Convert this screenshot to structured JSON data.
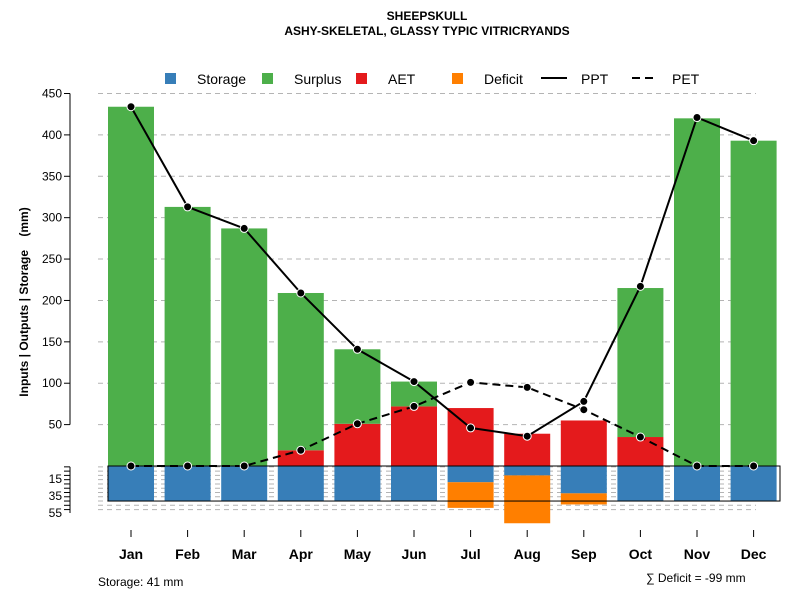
{
  "chart_data": {
    "type": "bar",
    "title": "SHEEPSKULL",
    "subtitle": "ASHY-SKELETAL, GLASSY TYPIC VITRICRYANDS",
    "ylabel": "Inputs | Outputs | Storage    (mm)",
    "ylim": [
      0,
      450
    ],
    "ylim_storage": [
      0,
      55
    ],
    "yticks": [
      50,
      100,
      150,
      200,
      250,
      300,
      350,
      400,
      450
    ],
    "yticks_storage": [
      15,
      35,
      55
    ],
    "grid": true,
    "legend_position": "top",
    "categories": [
      "Jan",
      "Feb",
      "Mar",
      "Apr",
      "May",
      "Jun",
      "Jul",
      "Aug",
      "Sep",
      "Oct",
      "Nov",
      "Dec"
    ],
    "series": [
      {
        "name": "Storage",
        "kind": "bar",
        "color": "#377EB8",
        "values": [
          41,
          41,
          41,
          41,
          41,
          41,
          19,
          11,
          32,
          41,
          41,
          41
        ]
      },
      {
        "name": "Surplus",
        "kind": "bar",
        "color": "#4DAF4A",
        "values": [
          434,
          313,
          287,
          190,
          90,
          30,
          0,
          0,
          0,
          180,
          420,
          393
        ]
      },
      {
        "name": "AET",
        "kind": "bar",
        "color": "#E41A1C",
        "values": [
          0,
          0,
          0,
          19,
          51,
          72,
          70,
          39,
          55,
          35,
          0,
          0
        ]
      },
      {
        "name": "Deficit",
        "kind": "bar",
        "color": "#FF7F00",
        "values": [
          0,
          0,
          0,
          0,
          0,
          0,
          30,
          56,
          13,
          0,
          0,
          0
        ]
      },
      {
        "name": "PPT",
        "kind": "line",
        "color": "#000000",
        "style": "solid",
        "values": [
          434,
          313,
          287,
          209,
          141,
          102,
          46,
          36,
          78,
          217,
          421,
          393
        ]
      },
      {
        "name": "PET",
        "kind": "line",
        "color": "#000000",
        "style": "dashed",
        "values": [
          0,
          0,
          0,
          19,
          51,
          72,
          101,
          95,
          68,
          35,
          0,
          0
        ]
      }
    ],
    "annotations": {
      "storage_note": "Storage: 41 mm",
      "deficit_note": "∑ Deficit = -99 mm"
    }
  }
}
